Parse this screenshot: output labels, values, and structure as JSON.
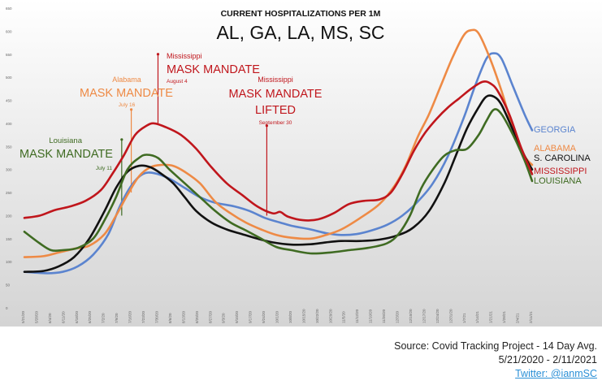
{
  "colors": {
    "georgia": "#5b84cf",
    "alabama": "#ee8a45",
    "south_carolina": "#111111",
    "mississippi": "#c0161c",
    "louisiana": "#3f6b22"
  },
  "chart_data": {
    "type": "line",
    "title": "CURRENT HOSPITALIZATIONS PER 1M",
    "subtitle": "AL, GA, LA, MS, SC",
    "xlabel": "",
    "ylabel": "",
    "ylim": [
      0,
      650
    ],
    "yticks": [
      "0",
      "50",
      "100",
      "150",
      "200",
      "250",
      "300",
      "350",
      "400",
      "450",
      "500",
      "550",
      "600",
      "650"
    ],
    "xlim": [
      0,
      266
    ],
    "grid": false,
    "x_tick_labels": [
      "5/21/20",
      "5/28/20",
      "6/4/20",
      "6/11/20",
      "6/18/20",
      "6/25/20",
      "7/2/20",
      "7/9/20",
      "7/16/20",
      "7/23/20",
      "7/30/20",
      "8/6/20",
      "8/13/20",
      "8/20/20",
      "8/27/20",
      "9/3/20",
      "9/10/20",
      "9/17/20",
      "9/24/20",
      "10/1/20",
      "10/8/20",
      "10/15/20",
      "10/22/20",
      "10/29/20",
      "11/5/20",
      "11/12/20",
      "11/19/20",
      "11/26/20",
      "12/3/20",
      "12/10/20",
      "12/17/20",
      "12/24/20",
      "12/31/20",
      "1/7/21",
      "1/14/21",
      "1/21/21",
      "1/28/21",
      "2/4/21",
      "2/11/21"
    ],
    "series": [
      {
        "name": "GEORGIA",
        "color_key": "georgia",
        "label_y": 385,
        "points": [
          [
            0,
            78
          ],
          [
            12,
            75
          ],
          [
            20,
            78
          ],
          [
            28,
            90
          ],
          [
            36,
            115
          ],
          [
            44,
            160
          ],
          [
            50,
            220
          ],
          [
            56,
            265
          ],
          [
            62,
            290
          ],
          [
            68,
            292
          ],
          [
            76,
            280
          ],
          [
            84,
            260
          ],
          [
            92,
            240
          ],
          [
            100,
            228
          ],
          [
            110,
            220
          ],
          [
            118,
            210
          ],
          [
            126,
            195
          ],
          [
            134,
            185
          ],
          [
            140,
            178
          ],
          [
            150,
            170
          ],
          [
            158,
            162
          ],
          [
            166,
            158
          ],
          [
            174,
            160
          ],
          [
            182,
            168
          ],
          [
            190,
            180
          ],
          [
            198,
            200
          ],
          [
            206,
            230
          ],
          [
            214,
            270
          ],
          [
            222,
            330
          ],
          [
            230,
            410
          ],
          [
            236,
            480
          ],
          [
            242,
            540
          ],
          [
            246,
            552
          ],
          [
            250,
            540
          ],
          [
            256,
            480
          ],
          [
            262,
            420
          ],
          [
            266,
            385
          ]
        ]
      },
      {
        "name": "ALABAMA",
        "color_key": "alabama",
        "label_y": 322,
        "points": [
          [
            0,
            110
          ],
          [
            10,
            112
          ],
          [
            18,
            120
          ],
          [
            26,
            128
          ],
          [
            34,
            135
          ],
          [
            42,
            160
          ],
          [
            48,
            200
          ],
          [
            54,
            245
          ],
          [
            60,
            285
          ],
          [
            66,
            305
          ],
          [
            72,
            310
          ],
          [
            78,
            308
          ],
          [
            84,
            295
          ],
          [
            92,
            270
          ],
          [
            100,
            230
          ],
          [
            108,
            205
          ],
          [
            116,
            185
          ],
          [
            124,
            170
          ],
          [
            132,
            158
          ],
          [
            140,
            152
          ],
          [
            150,
            150
          ],
          [
            158,
            158
          ],
          [
            166,
            170
          ],
          [
            176,
            195
          ],
          [
            186,
            225
          ],
          [
            194,
            265
          ],
          [
            200,
            310
          ],
          [
            206,
            370
          ],
          [
            212,
            420
          ],
          [
            218,
            480
          ],
          [
            224,
            540
          ],
          [
            230,
            590
          ],
          [
            234,
            602
          ],
          [
            238,
            595
          ],
          [
            244,
            540
          ],
          [
            250,
            470
          ],
          [
            256,
            390
          ],
          [
            262,
            330
          ],
          [
            266,
            310
          ]
        ]
      },
      {
        "name": "S. CAROLINA",
        "color_key": "south_carolina",
        "label_y": 302,
        "points": [
          [
            0,
            78
          ],
          [
            10,
            80
          ],
          [
            18,
            90
          ],
          [
            26,
            110
          ],
          [
            34,
            150
          ],
          [
            42,
            210
          ],
          [
            48,
            260
          ],
          [
            54,
            295
          ],
          [
            60,
            308
          ],
          [
            66,
            305
          ],
          [
            72,
            290
          ],
          [
            78,
            270
          ],
          [
            84,
            240
          ],
          [
            90,
            210
          ],
          [
            98,
            185
          ],
          [
            106,
            170
          ],
          [
            114,
            160
          ],
          [
            122,
            150
          ],
          [
            130,
            142
          ],
          [
            140,
            137
          ],
          [
            150,
            138
          ],
          [
            158,
            142
          ],
          [
            166,
            145
          ],
          [
            176,
            145
          ],
          [
            186,
            148
          ],
          [
            196,
            158
          ],
          [
            204,
            175
          ],
          [
            212,
            210
          ],
          [
            220,
            270
          ],
          [
            226,
            330
          ],
          [
            232,
            390
          ],
          [
            238,
            435
          ],
          [
            242,
            458
          ],
          [
            246,
            458
          ],
          [
            250,
            440
          ],
          [
            256,
            385
          ],
          [
            262,
            330
          ],
          [
            266,
            300
          ]
        ]
      },
      {
        "name": "MISSISSIPPI",
        "color_key": "mississippi",
        "label_y": 300,
        "points": [
          [
            0,
            195
          ],
          [
            8,
            200
          ],
          [
            16,
            212
          ],
          [
            24,
            220
          ],
          [
            32,
            232
          ],
          [
            40,
            255
          ],
          [
            46,
            290
          ],
          [
            52,
            330
          ],
          [
            58,
            375
          ],
          [
            64,
            395
          ],
          [
            68,
            400
          ],
          [
            74,
            392
          ],
          [
            82,
            375
          ],
          [
            90,
            345
          ],
          [
            98,
            305
          ],
          [
            106,
            270
          ],
          [
            114,
            245
          ],
          [
            122,
            220
          ],
          [
            130,
            205
          ],
          [
            134,
            208
          ],
          [
            138,
            198
          ],
          [
            146,
            190
          ],
          [
            154,
            192
          ],
          [
            162,
            205
          ],
          [
            170,
            225
          ],
          [
            178,
            232
          ],
          [
            186,
            235
          ],
          [
            192,
            250
          ],
          [
            198,
            290
          ],
          [
            204,
            340
          ],
          [
            210,
            380
          ],
          [
            216,
            410
          ],
          [
            222,
            435
          ],
          [
            228,
            455
          ],
          [
            234,
            475
          ],
          [
            240,
            490
          ],
          [
            244,
            487
          ],
          [
            248,
            470
          ],
          [
            254,
            420
          ],
          [
            260,
            350
          ],
          [
            266,
            290
          ]
        ]
      },
      {
        "name": "LOUISIANA",
        "color_key": "louisiana",
        "label_y": 280,
        "points": [
          [
            0,
            165
          ],
          [
            8,
            140
          ],
          [
            14,
            125
          ],
          [
            20,
            125
          ],
          [
            28,
            130
          ],
          [
            36,
            150
          ],
          [
            42,
            190
          ],
          [
            48,
            240
          ],
          [
            54,
            300
          ],
          [
            60,
            325
          ],
          [
            64,
            332
          ],
          [
            70,
            325
          ],
          [
            76,
            300
          ],
          [
            84,
            270
          ],
          [
            92,
            240
          ],
          [
            100,
            210
          ],
          [
            108,
            185
          ],
          [
            116,
            168
          ],
          [
            124,
            150
          ],
          [
            132,
            132
          ],
          [
            140,
            125
          ],
          [
            150,
            118
          ],
          [
            160,
            120
          ],
          [
            170,
            125
          ],
          [
            180,
            130
          ],
          [
            190,
            140
          ],
          [
            196,
            160
          ],
          [
            202,
            200
          ],
          [
            208,
            260
          ],
          [
            214,
            300
          ],
          [
            220,
            330
          ],
          [
            226,
            342
          ],
          [
            232,
            345
          ],
          [
            238,
            375
          ],
          [
            242,
            405
          ],
          [
            246,
            430
          ],
          [
            250,
            420
          ],
          [
            256,
            375
          ],
          [
            262,
            320
          ],
          [
            266,
            275
          ]
        ]
      }
    ],
    "annotations": [
      {
        "state": "Louisiana",
        "label": "MASK MANDATE",
        "date": "July 11",
        "color_key": "louisiana",
        "x": 51,
        "y_from": 200,
        "y_to": 365
      },
      {
        "state": "Alabama",
        "label": "MASK MANDATE",
        "date": "July 16",
        "color_key": "alabama",
        "x": 56,
        "y_from": 250,
        "y_to": 430
      },
      {
        "state": "Mississippi",
        "label": "MASK MANDATE",
        "date": "August 4",
        "color_key": "mississippi",
        "x": 70,
        "y_from": 400,
        "y_to": 550
      },
      {
        "state": "Mississippi",
        "label": "MASK MANDATE LIFTED",
        "date": "September 30",
        "color_key": "mississippi",
        "x": 127,
        "y_from": 200,
        "y_to": 395
      }
    ]
  },
  "footer": {
    "source": "Source: Covid Tracking Project - 14 Day Avg.",
    "date_range": "5/21/2020 - 2/11/2021",
    "twitter": "Twitter: @ianmSC"
  }
}
